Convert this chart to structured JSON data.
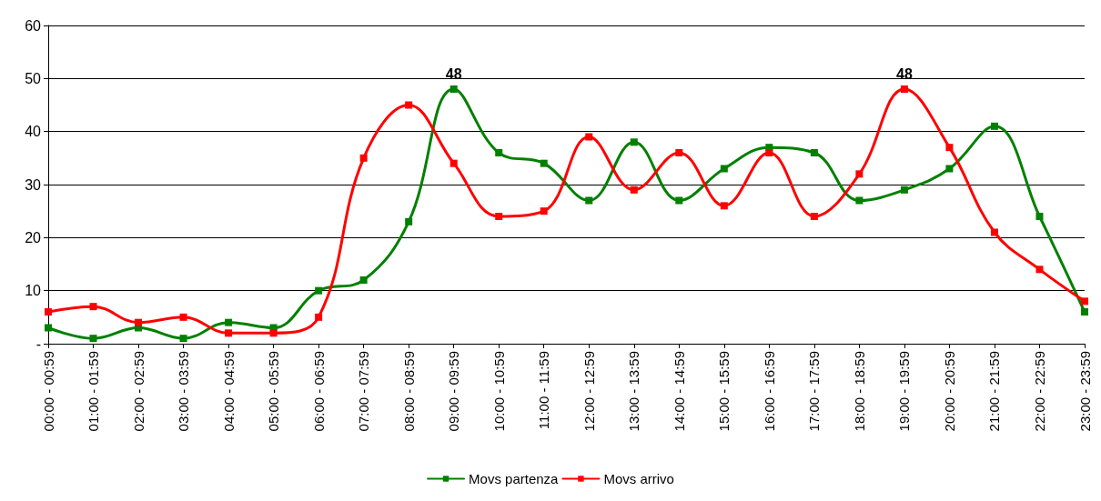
{
  "chart_data": {
    "type": "line",
    "categories": [
      "00:00 - 00:59",
      "01:00 - 01:59",
      "02:00 - 02:59",
      "03:00 - 03:59",
      "04:00 - 04:59",
      "05:00 - 05:59",
      "06:00 - 06:59",
      "07:00 - 07:59",
      "08:00 - 08:59",
      "09:00 - 09:59",
      "10:00 - 10:59",
      "11:00 - 11:59",
      "12:00 - 12:59",
      "13:00 - 13:59",
      "14:00 - 14:59",
      "15:00 - 15:59",
      "16:00 - 16:59",
      "17:00 - 17:59",
      "18:00 - 18:59",
      "19:00 - 19:59",
      "20:00 - 20:59",
      "21:00 - 21:59",
      "22:00 - 22:59",
      "23:00 - 23:59"
    ],
    "series": [
      {
        "name": "Movs partenza",
        "color": "#008000",
        "values": [
          3,
          1,
          3,
          1,
          4,
          3,
          10,
          12,
          23,
          48,
          36,
          34,
          27,
          38,
          27,
          33,
          37,
          36,
          27,
          29,
          33,
          41,
          24,
          6
        ],
        "value_labels": [
          null,
          null,
          null,
          null,
          null,
          null,
          null,
          null,
          null,
          "48",
          null,
          null,
          null,
          null,
          null,
          null,
          null,
          null,
          null,
          null,
          null,
          null,
          null,
          null
        ]
      },
      {
        "name": "Movs arrivo",
        "color": "#ff0000",
        "values": [
          6,
          7,
          4,
          5,
          2,
          2,
          5,
          35,
          45,
          34,
          24,
          25,
          39,
          29,
          36,
          26,
          36,
          24,
          32,
          48,
          37,
          21,
          14,
          8
        ],
        "value_labels": [
          null,
          null,
          null,
          null,
          null,
          null,
          null,
          null,
          null,
          null,
          null,
          null,
          null,
          null,
          null,
          null,
          null,
          null,
          null,
          "48",
          null,
          null,
          null,
          null
        ]
      }
    ],
    "ylim": [
      0,
      60
    ],
    "yticks": [
      {
        "value": 0,
        "label": "-"
      },
      10,
      20,
      30,
      40,
      50,
      60
    ],
    "grid": "y",
    "legend": "bottom",
    "marker": "square",
    "line_style": "solid"
  }
}
